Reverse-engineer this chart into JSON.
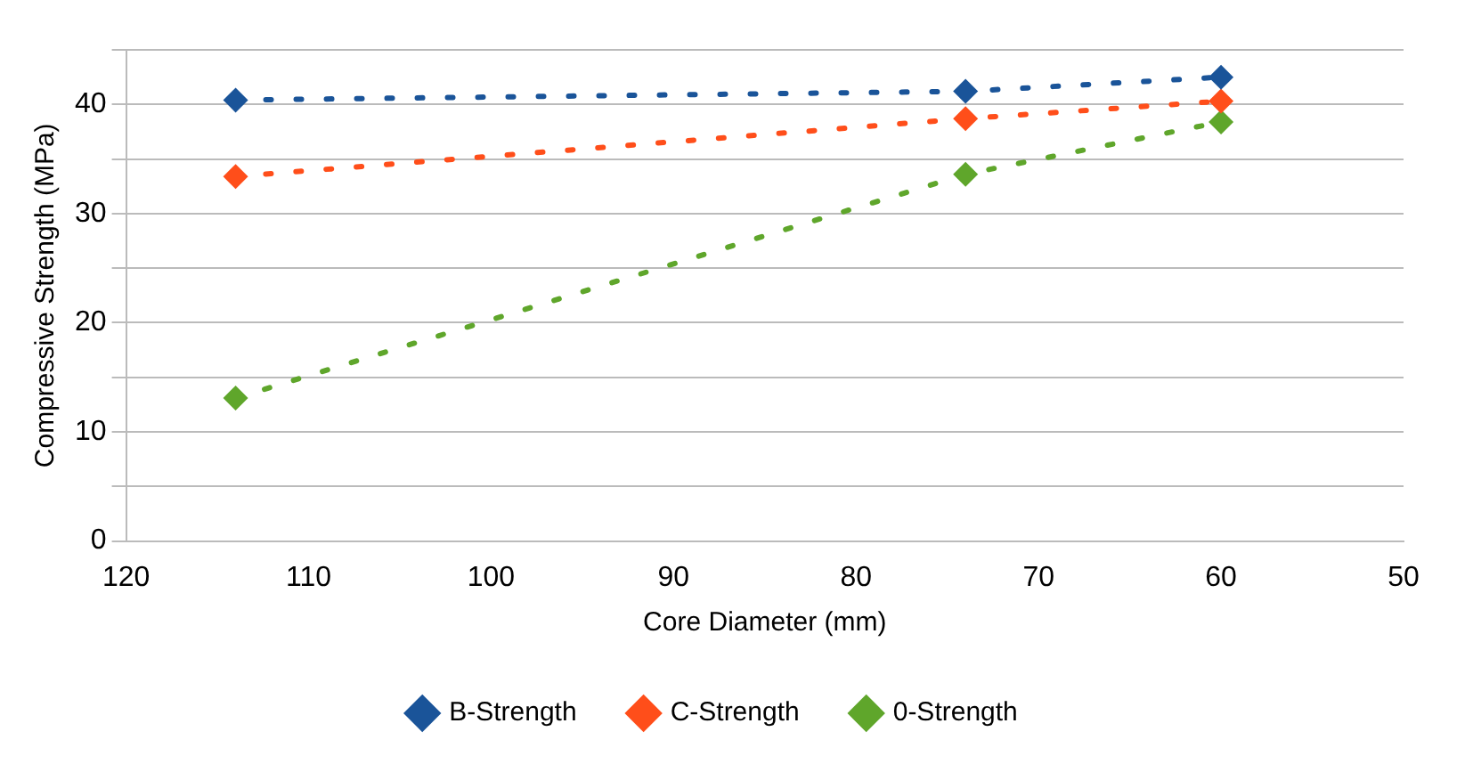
{
  "chart_data": {
    "type": "line",
    "xlabel": "Core Diameter (mm)",
    "ylabel": "Compressive Strength (MPa)",
    "x": [
      114,
      74,
      60
    ],
    "series": [
      {
        "name": "B-Strength",
        "color": "#1a5499",
        "values": [
          40.4,
          41.2,
          42.5
        ]
      },
      {
        "name": "C-Strength",
        "color": "#ff4e1a",
        "values": [
          33.4,
          38.7,
          40.3
        ]
      },
      {
        "name": "0-Strength",
        "color": "#5fa62b",
        "values": [
          13.1,
          33.6,
          38.4
        ]
      }
    ],
    "xlim": [
      120,
      50
    ],
    "xticks": [
      120,
      110,
      100,
      90,
      80,
      70,
      60,
      50
    ],
    "ylim": [
      0,
      45
    ],
    "yticks": [
      0,
      {
        "value": 5,
        "label": null
      },
      10,
      {
        "value": 15,
        "label": null
      },
      20,
      {
        "value": 25,
        "label": null
      },
      30,
      {
        "value": 35,
        "label": null
      },
      40,
      {
        "value": 45,
        "label": null
      }
    ],
    "grid": "y",
    "legend": "bottom",
    "marker": "diamond",
    "line_style": "dotted"
  }
}
